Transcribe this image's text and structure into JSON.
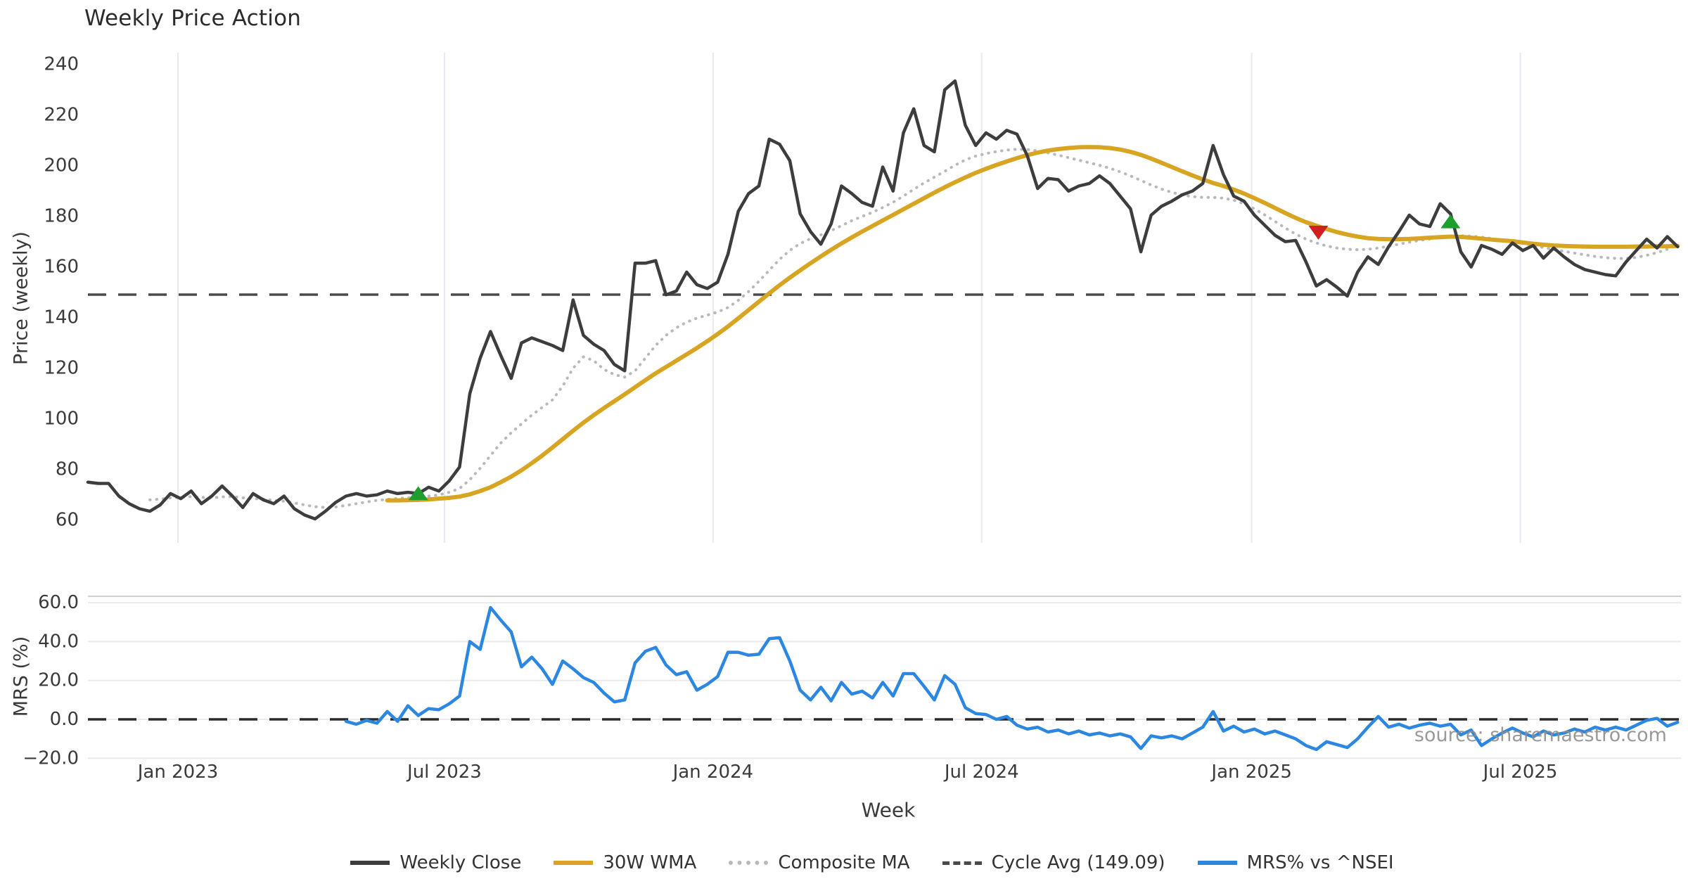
{
  "title": "Weekly Price Action",
  "watermark": "source: sharemaestro.com",
  "xlabel": "Week",
  "price_panel": {
    "ylabel": "Price (weekly)",
    "yticks": [
      240,
      220,
      200,
      180,
      160,
      140,
      120,
      100,
      80,
      60
    ],
    "cycle_avg_value": 149.09
  },
  "mrs_panel": {
    "ylabel": "MRS (%)",
    "yticks": [
      60,
      40,
      20,
      0,
      -20
    ],
    "ytick_labels": [
      "60.0",
      "40.0",
      "20.0",
      "0.0",
      "−20.0"
    ],
    "zero_line": 0
  },
  "xticks": [
    {
      "label": "Jan 2023",
      "week": 8.72
    },
    {
      "label": "Jul 2023",
      "week": 34.54
    },
    {
      "label": "Jan 2024",
      "week": 60.56
    },
    {
      "label": "Jul 2024",
      "week": 86.58
    },
    {
      "label": "Jan 2025",
      "week": 112.74
    },
    {
      "label": "Jul 2025",
      "week": 138.76
    }
  ],
  "legend": {
    "items": [
      {
        "label": "Weekly Close",
        "swatch": "sw-close"
      },
      {
        "label": "30W WMA",
        "swatch": "sw-wma"
      },
      {
        "label": "Composite MA",
        "swatch": "sw-comp"
      },
      {
        "label": "Cycle Avg (149.09)",
        "swatch": "sw-cycle"
      },
      {
        "label": "MRS% vs ^NSEI",
        "swatch": "sw-mrs"
      }
    ]
  },
  "colors": {
    "close": "#3d3d3d",
    "wma30": "#d7a521",
    "composite": "#b9b9b9",
    "cycle": "#4a4a4a",
    "mrs": "#2b87e0",
    "grid": "#e9e9ef",
    "text": "#3a3a3a",
    "buy_marker": "#1e9e2e",
    "sell_marker": "#cf2020"
  },
  "chart_data": [
    {
      "type": "line",
      "panel": "price",
      "title": "Weekly Price Action",
      "xlabel": "Week",
      "ylabel": "Price (weekly)",
      "ylim": [
        55,
        245
      ],
      "x_unit": "week_index_from_2022-11",
      "grid": "vertical",
      "legend_position": "bottom",
      "series": [
        {
          "name": "Weekly Close",
          "values": [
            75,
            74.5,
            74.5,
            69.5,
            66.5,
            64.5,
            63.5,
            66,
            70.5,
            68.5,
            71.5,
            66.5,
            69.5,
            73.5,
            69.5,
            65,
            70.5,
            68,
            66.5,
            69.5,
            64.5,
            62,
            60.5,
            63.5,
            67,
            69.5,
            70.5,
            69.5,
            70,
            71.5,
            70.5,
            71,
            70.5,
            73,
            71.5,
            75.5,
            81,
            110,
            124,
            134.5,
            125,
            116,
            130,
            132,
            130.5,
            129,
            127,
            147,
            133,
            129.5,
            127,
            121.5,
            119,
            161.5,
            161.5,
            162.5,
            149,
            150.5,
            158,
            153,
            151.5,
            154,
            165,
            182,
            189,
            192,
            210.5,
            208.5,
            202,
            181,
            174,
            169,
            177,
            192,
            189,
            185.5,
            184,
            199.5,
            190,
            213,
            222.5,
            208,
            205.5,
            230,
            233.5,
            216,
            208,
            213,
            210.5,
            214,
            212.5,
            204,
            191,
            195,
            194.5,
            190,
            192,
            193,
            196,
            193,
            188,
            183,
            166,
            180.5,
            184,
            186,
            188.5,
            190,
            193,
            208,
            196.5,
            188,
            186,
            180.5,
            176.5,
            172.5,
            170,
            170.5,
            162,
            152.5,
            155,
            152,
            148.5,
            158,
            164,
            161,
            168,
            174,
            180.5,
            177,
            176,
            185,
            181,
            166,
            160,
            168.5,
            167,
            165,
            169.5,
            166.5,
            168.5,
            163.5,
            167.5,
            164,
            161,
            159,
            158,
            157,
            156.5,
            162,
            166.5,
            171,
            167.5,
            172,
            168
          ]
        },
        {
          "name": "30W WMA",
          "values": [
            null,
            null,
            null,
            null,
            null,
            null,
            null,
            null,
            null,
            null,
            null,
            null,
            null,
            null,
            null,
            null,
            null,
            null,
            null,
            null,
            null,
            null,
            null,
            null,
            null,
            null,
            null,
            null,
            null,
            67.8,
            67.8,
            67.9,
            68,
            68.2,
            68.5,
            68.8,
            69.3,
            70.2,
            71.5,
            73,
            75,
            77.2,
            79.7,
            82.5,
            85.5,
            88.7,
            92,
            95.3,
            98.5,
            101.5,
            104.3,
            107,
            109.7,
            112.5,
            115.3,
            118,
            120.5,
            123,
            125.5,
            128,
            130.7,
            133.5,
            136.5,
            139.7,
            143,
            146.3,
            149.6,
            152.8,
            155.8,
            158.7,
            161.5,
            164.2,
            166.8,
            169.3,
            171.7,
            174,
            176.2,
            178.4,
            180.6,
            182.8,
            185,
            187.2,
            189.4,
            191.5,
            193.5,
            195.4,
            197.2,
            198.8,
            200.3,
            201.7,
            203,
            204.2,
            205.2,
            206,
            206.6,
            207,
            207.3,
            207.4,
            207.3,
            207,
            206.4,
            205.5,
            204.3,
            202.8,
            201.2,
            199.5,
            197.8,
            196.2,
            194.6,
            193.2,
            192,
            190.6,
            189,
            187.2,
            185.3,
            183.3,
            181.3,
            179.4,
            177.7,
            176.3,
            175,
            173.8,
            172.8,
            172,
            171.4,
            171.1,
            171,
            171,
            171.1,
            171.3,
            171.6,
            171.8,
            172,
            171.9,
            171.6,
            171.2,
            170.8,
            170.5,
            170.2,
            169.7,
            169.2,
            168.8,
            168.5,
            168.3,
            168.2,
            168.1,
            168,
            168,
            168,
            168,
            168.1,
            168.1,
            168.2,
            168.2,
            168.3
          ]
        },
        {
          "name": "Composite MA",
          "values": [
            null,
            null,
            null,
            null,
            null,
            null,
            68,
            68.3,
            68.8,
            69,
            69.3,
            69,
            68.8,
            69.2,
            69.3,
            68.8,
            68.5,
            68.3,
            67.8,
            67.5,
            66.8,
            66,
            65.3,
            65,
            65.2,
            65.8,
            66.5,
            67.2,
            67.8,
            68.2,
            68.6,
            68.8,
            69,
            69.5,
            70,
            71,
            72.5,
            76,
            80.5,
            85.5,
            90.5,
            94.5,
            98,
            101.5,
            104.5,
            107.5,
            113,
            120,
            124.5,
            123,
            119.5,
            117.5,
            116.5,
            119,
            124,
            129,
            133,
            136,
            138.2,
            139.8,
            141,
            142.2,
            144,
            146.8,
            150.3,
            154.3,
            158.7,
            163,
            166.6,
            169.3,
            171.2,
            172.7,
            174.4,
            176.3,
            178.3,
            180,
            181.6,
            183.5,
            185.6,
            188,
            190.7,
            193.2,
            195.5,
            197.8,
            200.2,
            202.3,
            203.8,
            204.8,
            205.6,
            206.2,
            206.5,
            206.4,
            205.9,
            205.1,
            204.2,
            203.2,
            202.2,
            201.2,
            200.2,
            199,
            197.6,
            196,
            194.2,
            192.4,
            190.8,
            189.5,
            188.5,
            187.8,
            187.5,
            187.5,
            187.2,
            186.4,
            185,
            183,
            180.6,
            178,
            175.4,
            173,
            171,
            169.5,
            168.3,
            167.5,
            167,
            166.8,
            167,
            167.5,
            168.2,
            169,
            169.8,
            170.5,
            171.1,
            171.7,
            172.2,
            172.4,
            172.2,
            171.8,
            171.2,
            170.6,
            170,
            169.3,
            168.5,
            167.7,
            166.9,
            166.2,
            165.5,
            164.8,
            164.2,
            163.7,
            163.4,
            163.4,
            163.8,
            164.6,
            165.7,
            167,
            168.5
          ]
        },
        {
          "name": "Cycle Avg (149.09)",
          "constant": 149.09
        }
      ],
      "markers": [
        {
          "type": "buy",
          "week": 32,
          "price": 70.1
        },
        {
          "type": "sell",
          "week": 119.2,
          "price": 174.1
        },
        {
          "type": "buy",
          "week": 132,
          "price": 177.5
        }
      ]
    },
    {
      "type": "line",
      "panel": "mrs",
      "xlabel": "Week",
      "ylabel": "MRS (%)",
      "ylim": [
        -25,
        65
      ],
      "grid": "horizontal",
      "series": [
        {
          "name": "MRS% vs ^NSEI",
          "values": [
            null,
            null,
            null,
            null,
            null,
            null,
            null,
            null,
            null,
            null,
            null,
            null,
            null,
            null,
            null,
            null,
            null,
            null,
            null,
            null,
            null,
            null,
            null,
            null,
            null,
            -1,
            -2.5,
            -0.5,
            -2,
            4,
            -1,
            7,
            2,
            5.5,
            5,
            8,
            12,
            40,
            36,
            57.5,
            51,
            45,
            27,
            32,
            26,
            18,
            30,
            26,
            21.5,
            19,
            13.5,
            9,
            10,
            29,
            35,
            37,
            28,
            23,
            24.5,
            15,
            18,
            22,
            34.5,
            34.5,
            33,
            33.5,
            41.5,
            42,
            30,
            15,
            10,
            16.5,
            9.5,
            19,
            13,
            14.5,
            11,
            19,
            12,
            23.5,
            23.5,
            17,
            10,
            22.5,
            18,
            6,
            3,
            2.5,
            0,
            1.5,
            -3,
            -5,
            -4,
            -6.5,
            -5.5,
            -7.5,
            -6,
            -8,
            -7,
            -8.5,
            -7.5,
            -9,
            -15,
            -8.5,
            -9.5,
            -8.5,
            -10,
            -7,
            -4,
            4,
            -6,
            -3.5,
            -6.5,
            -5,
            -7.5,
            -6,
            -8,
            -10,
            -13.5,
            -15.5,
            -11.5,
            -13,
            -14.5,
            -10,
            -4,
            1.5,
            -4,
            -2.5,
            -4.5,
            -3,
            -2,
            -3.5,
            -2.5,
            -8,
            -5.5,
            -13.5,
            -10,
            -7,
            -4.5,
            -7,
            -9,
            -6,
            -8,
            -7,
            -5,
            -6.5,
            -4,
            -5.5,
            -4,
            -5.5,
            -3,
            -0.5,
            0.5,
            -3.5,
            -1.5
          ]
        },
        {
          "name": "zero line",
          "constant": 0
        }
      ]
    }
  ]
}
